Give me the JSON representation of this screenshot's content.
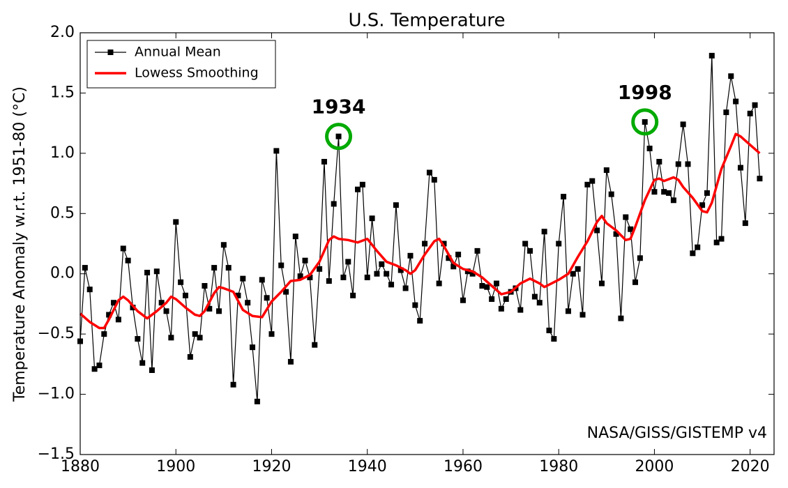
{
  "chart_data": {
    "type": "line",
    "title": "U.S. Temperature",
    "y_label": "Temperature Anomaly w.r.t. 1951-80 (°C)",
    "credit": "NASA/GISS/GISTEMP v4",
    "xlim": [
      1880,
      2025
    ],
    "ylim": [
      -1.5,
      2.0
    ],
    "xticks": [
      1880,
      1900,
      1920,
      1940,
      1960,
      1980,
      2000,
      2020
    ],
    "yticks": [
      {
        "value": -1.5,
        "label": "−1.5"
      },
      {
        "value": -1,
        "label": "−1.0"
      },
      {
        "value": -0.5,
        "label": "−0.5"
      },
      {
        "value": 0,
        "label": "0.0"
      },
      0.5,
      {
        "value": 1,
        "label": "1.0"
      },
      1.5,
      {
        "value": 2,
        "label": "2.0"
      }
    ],
    "legend": "upper left",
    "series": [
      {
        "name": "Annual Mean",
        "color": "#000000",
        "marker": "square",
        "x": [
          1880,
          1881,
          1882,
          1883,
          1884,
          1885,
          1886,
          1887,
          1888,
          1889,
          1890,
          1891,
          1892,
          1893,
          1894,
          1895,
          1896,
          1897,
          1898,
          1899,
          1900,
          1901,
          1902,
          1903,
          1904,
          1905,
          1906,
          1907,
          1908,
          1909,
          1910,
          1911,
          1912,
          1913,
          1914,
          1915,
          1916,
          1917,
          1918,
          1919,
          1920,
          1921,
          1922,
          1923,
          1924,
          1925,
          1926,
          1927,
          1928,
          1929,
          1930,
          1931,
          1932,
          1933,
          1934,
          1935,
          1936,
          1937,
          1938,
          1939,
          1940,
          1941,
          1942,
          1943,
          1944,
          1945,
          1946,
          1947,
          1948,
          1949,
          1950,
          1951,
          1952,
          1953,
          1954,
          1955,
          1956,
          1957,
          1958,
          1959,
          1960,
          1961,
          1962,
          1963,
          1964,
          1965,
          1966,
          1967,
          1968,
          1969,
          1970,
          1971,
          1972,
          1973,
          1974,
          1975,
          1976,
          1977,
          1978,
          1979,
          1980,
          1981,
          1982,
          1983,
          1984,
          1985,
          1986,
          1987,
          1988,
          1989,
          1990,
          1991,
          1992,
          1993,
          1994,
          1995,
          1996,
          1997,
          1998,
          1999,
          2000,
          2001,
          2002,
          2003,
          2004,
          2005,
          2006,
          2007,
          2008,
          2009,
          2010,
          2011,
          2012,
          2013,
          2014,
          2015,
          2016,
          2017,
          2018,
          2019,
          2020,
          2021,
          2022
        ],
        "values": [
          -0.56,
          0.05,
          -0.13,
          -0.79,
          -0.76,
          -0.5,
          -0.34,
          -0.24,
          -0.38,
          0.21,
          0.11,
          -0.28,
          -0.54,
          -0.74,
          0.01,
          -0.8,
          0.02,
          -0.24,
          -0.31,
          -0.53,
          0.43,
          -0.07,
          -0.18,
          -0.69,
          -0.5,
          -0.53,
          -0.1,
          -0.29,
          0.05,
          -0.31,
          0.24,
          0.05,
          -0.92,
          -0.18,
          -0.04,
          -0.24,
          -0.61,
          -1.06,
          -0.05,
          -0.2,
          -0.5,
          1.02,
          0.07,
          -0.15,
          -0.73,
          0.31,
          -0.02,
          0.11,
          -0.03,
          -0.59,
          0.04,
          0.93,
          -0.06,
          0.58,
          1.14,
          -0.03,
          0.1,
          -0.18,
          0.7,
          0.74,
          -0.03,
          0.46,
          0.0,
          0.08,
          0.0,
          -0.09,
          0.57,
          0.03,
          -0.12,
          0.15,
          -0.26,
          -0.39,
          0.25,
          0.84,
          0.78,
          -0.08,
          0.25,
          0.13,
          0.06,
          0.16,
          -0.22,
          0.02,
          0.0,
          0.19,
          -0.1,
          -0.11,
          -0.21,
          -0.08,
          -0.29,
          -0.21,
          -0.15,
          -0.12,
          -0.3,
          0.25,
          0.19,
          -0.19,
          -0.24,
          0.35,
          -0.47,
          -0.54,
          0.25,
          0.64,
          -0.31,
          0.0,
          0.04,
          -0.34,
          0.74,
          0.77,
          0.36,
          -0.08,
          0.86,
          0.66,
          0.33,
          -0.37,
          0.47,
          0.37,
          -0.07,
          0.13,
          1.26,
          1.04,
          0.68,
          0.93,
          0.68,
          0.67,
          0.61,
          0.91,
          1.24,
          0.91,
          0.17,
          0.22,
          0.57,
          0.67,
          1.81,
          0.26,
          0.29,
          1.34,
          1.64,
          1.43,
          0.88,
          0.42,
          1.33,
          1.4,
          0.79
        ]
      },
      {
        "name": "Lowess Smoothing",
        "color": "#ff0000",
        "x": [
          1880,
          1882,
          1884,
          1885,
          1886,
          1888,
          1889,
          1890,
          1892,
          1894,
          1896,
          1898,
          1899,
          1900,
          1902,
          1904,
          1905,
          1906,
          1908,
          1909,
          1910,
          1912,
          1914,
          1916,
          1918,
          1920,
          1922,
          1924,
          1926,
          1928,
          1930,
          1932,
          1933,
          1934,
          1936,
          1938,
          1940,
          1942,
          1944,
          1946,
          1948,
          1949,
          1950,
          1952,
          1954,
          1955,
          1956,
          1958,
          1960,
          1962,
          1964,
          1966,
          1968,
          1970,
          1972,
          1974,
          1976,
          1977,
          1978,
          1980,
          1982,
          1984,
          1986,
          1988,
          1989,
          1990,
          1992,
          1994,
          1995,
          1996,
          1998,
          2000,
          2001,
          2002,
          2004,
          2005,
          2006,
          2008,
          2010,
          2011,
          2012,
          2014,
          2016,
          2017,
          2018,
          2020,
          2022
        ],
        "values": [
          -0.33,
          -0.4,
          -0.45,
          -0.45,
          -0.38,
          -0.22,
          -0.19,
          -0.22,
          -0.31,
          -0.37,
          -0.31,
          -0.24,
          -0.19,
          -0.21,
          -0.28,
          -0.34,
          -0.35,
          -0.31,
          -0.16,
          -0.11,
          -0.12,
          -0.15,
          -0.3,
          -0.35,
          -0.36,
          -0.23,
          -0.15,
          -0.06,
          -0.05,
          -0.01,
          0.1,
          0.28,
          0.31,
          0.29,
          0.28,
          0.26,
          0.29,
          0.19,
          0.1,
          0.07,
          0.03,
          0.0,
          0.03,
          0.16,
          0.27,
          0.29,
          0.23,
          0.09,
          0.04,
          0.02,
          -0.03,
          -0.1,
          -0.17,
          -0.15,
          -0.08,
          -0.04,
          -0.08,
          -0.11,
          -0.09,
          -0.05,
          0.0,
          0.14,
          0.27,
          0.43,
          0.48,
          0.42,
          0.36,
          0.28,
          0.29,
          0.39,
          0.61,
          0.78,
          0.79,
          0.77,
          0.8,
          0.78,
          0.72,
          0.63,
          0.52,
          0.51,
          0.59,
          0.87,
          1.06,
          1.16,
          1.14,
          1.07,
          1.0
        ]
      }
    ],
    "annotations": [
      {
        "text": "1934",
        "x": 1934,
        "y": 1.14,
        "color": "#00aa00"
      },
      {
        "text": "1998",
        "x": 1998,
        "y": 1.26,
        "color": "#00aa00"
      }
    ]
  }
}
